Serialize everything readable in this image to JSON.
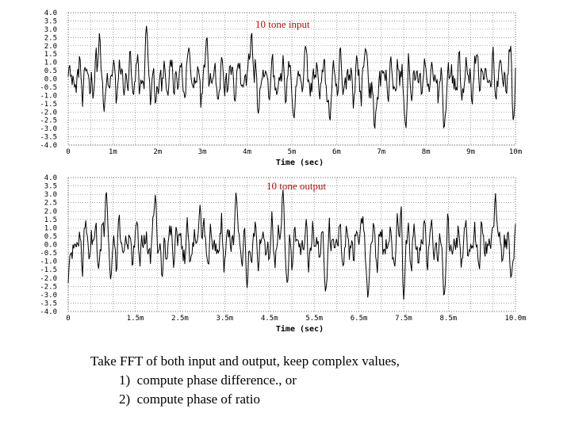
{
  "chart_data": [
    {
      "type": "line",
      "title": "10 tone input",
      "xlabel": "Time (sec)",
      "ylabel": "",
      "xlim": [
        0,
        10
      ],
      "ylim": [
        -4.0,
        4.0
      ],
      "grid": true,
      "yticks": [
        "4.0",
        "3.5",
        "3.0",
        "2.5",
        "2.0",
        "1.5",
        "1.0",
        "0.5",
        "0.0",
        "-0.5",
        "-1.0",
        "-1.5",
        "-2.0",
        "-2.5",
        "-3.0",
        "-3.5",
        "-4.0"
      ],
      "xticks": [
        {
          "v": 0,
          "label": "0"
        },
        {
          "v": 1,
          "label": "1m"
        },
        {
          "v": 2,
          "label": "2m"
        },
        {
          "v": 3,
          "label": "3m"
        },
        {
          "v": 4,
          "label": "4m"
        },
        {
          "v": 5,
          "label": "5m"
        },
        {
          "v": 6,
          "label": "6m"
        },
        {
          "v": 7,
          "label": "7m"
        },
        {
          "v": 8,
          "label": "8m"
        },
        {
          "v": 9,
          "label": "9m"
        },
        {
          "v": 10,
          "label": "10m"
        }
      ],
      "x_unit_note": "milliseconds",
      "peaks": [
        {
          "x": 0.7,
          "y": 2.8
        },
        {
          "x": 0.8,
          "y": -2.0
        },
        {
          "x": 1.75,
          "y": 3.2
        },
        {
          "x": 1.95,
          "y": -1.5
        },
        {
          "x": 2.7,
          "y": 1.9
        },
        {
          "x": 3.1,
          "y": 2.6
        },
        {
          "x": 4.1,
          "y": 2.9
        },
        {
          "x": 4.25,
          "y": -2.1
        },
        {
          "x": 5.05,
          "y": -2.4
        },
        {
          "x": 5.3,
          "y": 2.0
        },
        {
          "x": 5.85,
          "y": -2.6
        },
        {
          "x": 6.65,
          "y": 1.9
        },
        {
          "x": 6.85,
          "y": -3.2
        },
        {
          "x": 7.55,
          "y": -3.0
        },
        {
          "x": 8.4,
          "y": -3.1
        },
        {
          "x": 9.15,
          "y": 1.5
        },
        {
          "x": 9.9,
          "y": 2.4
        },
        {
          "x": 9.95,
          "y": -2.5
        }
      ]
    },
    {
      "type": "line",
      "title": "10 tone output",
      "xlabel": "Time (sec)",
      "ylabel": "",
      "xlim": [
        0,
        10
      ],
      "ylim": [
        -4.0,
        4.0
      ],
      "grid": true,
      "yticks": [
        "4.0",
        "3.5",
        "3.0",
        "2.5",
        "2.0",
        "1.5",
        "1.0",
        "0.5",
        "0.0",
        "-0.5",
        "-1.0",
        "-1.5",
        "-2.0",
        "-2.5",
        "-3.0",
        "-3.5",
        "-4.0"
      ],
      "xticks": [
        {
          "v": 0,
          "label": "0"
        },
        {
          "v": 1.5,
          "label": "1.5m"
        },
        {
          "v": 2.5,
          "label": "2.5m"
        },
        {
          "v": 3.5,
          "label": "3.5m"
        },
        {
          "v": 4.5,
          "label": "4.5m"
        },
        {
          "v": 5.5,
          "label": "5.5m"
        },
        {
          "v": 6.5,
          "label": "6.5m"
        },
        {
          "v": 7.5,
          "label": "7.5m"
        },
        {
          "v": 8.5,
          "label": "8.5m"
        },
        {
          "v": 10,
          "label": "10.0m"
        }
      ],
      "x_unit_note": "milliseconds",
      "peaks": [
        {
          "x": 0.0,
          "y": -2.3
        },
        {
          "x": 0.85,
          "y": 3.3
        },
        {
          "x": 0.95,
          "y": -2.1
        },
        {
          "x": 1.95,
          "y": 3.0
        },
        {
          "x": 2.1,
          "y": -2.0
        },
        {
          "x": 2.95,
          "y": 2.4
        },
        {
          "x": 3.75,
          "y": 3.1
        },
        {
          "x": 4.0,
          "y": -2.6
        },
        {
          "x": 4.8,
          "y": 3.3
        },
        {
          "x": 4.9,
          "y": -2.4
        },
        {
          "x": 5.75,
          "y": -2.8
        },
        {
          "x": 6.55,
          "y": 1.6
        },
        {
          "x": 6.7,
          "y": -3.2
        },
        {
          "x": 7.45,
          "y": 2.9
        },
        {
          "x": 7.5,
          "y": -3.3
        },
        {
          "x": 8.4,
          "y": -3.1
        },
        {
          "x": 9.55,
          "y": 3.1
        },
        {
          "x": 9.9,
          "y": -2.0
        }
      ]
    }
  ],
  "caption": {
    "line1": "Take FFT of both input and output, keep complex values,",
    "item1": "1)  compute phase difference., or",
    "item2": "2)  compute phase of ratio"
  }
}
